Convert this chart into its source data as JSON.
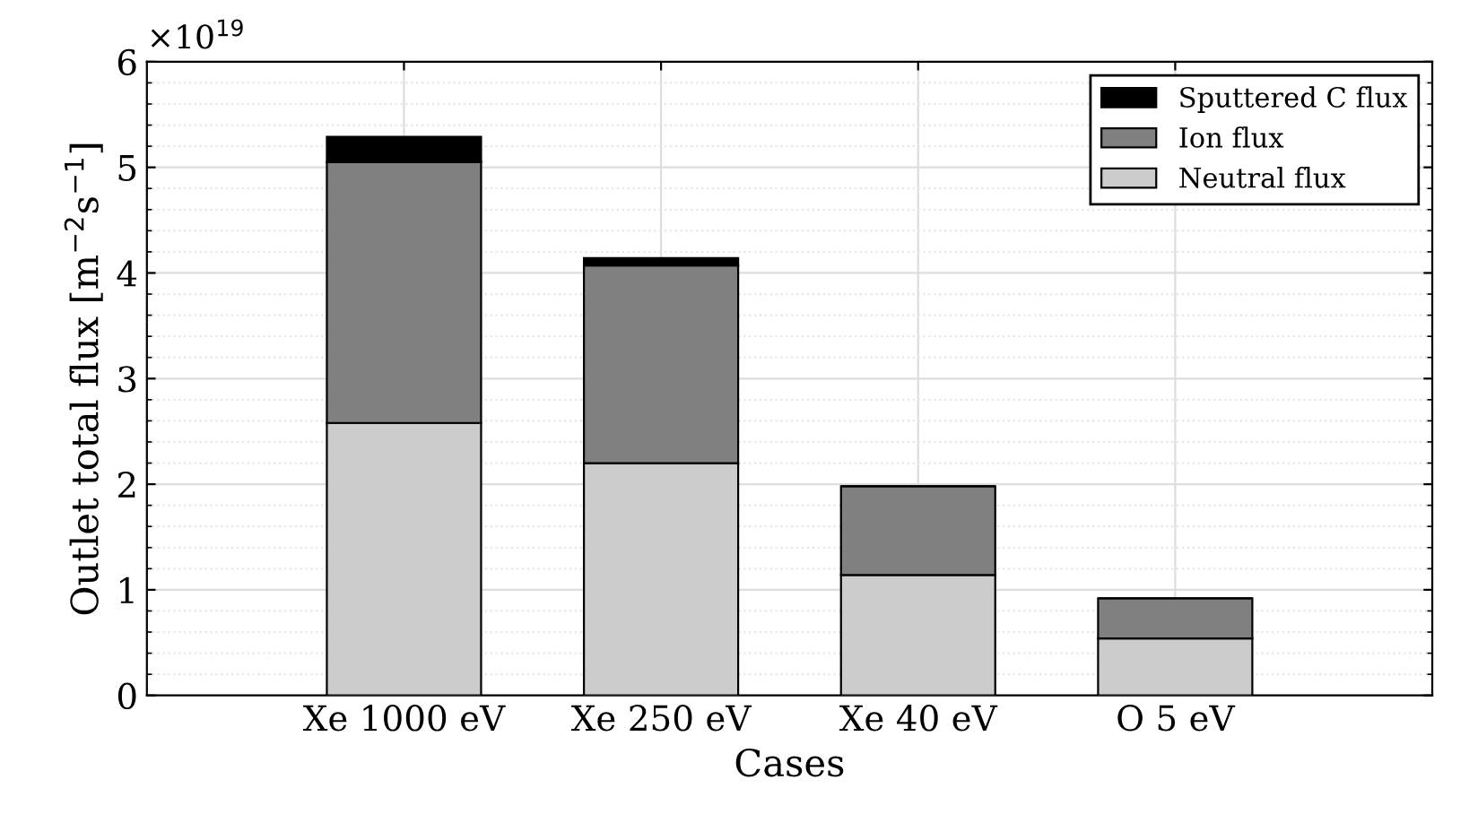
{
  "chart_data": {
    "type": "bar",
    "stacked": true,
    "xlabel": "Cases",
    "ylabel": "Outlet total flux [m$^{−2}$s$^{−1}$]",
    "categories": [
      "Xe 1000 eV",
      "Xe 250 eV",
      "Xe 40 eV",
      "O 5 eV"
    ],
    "series": [
      {
        "name": "Neutral flux",
        "color": "#cccccc",
        "values": [
          2.58,
          2.2,
          1.14,
          0.54
        ]
      },
      {
        "name": "Ion flux",
        "color": "#808080",
        "values": [
          2.47,
          1.87,
          0.84,
          0.38
        ]
      },
      {
        "name": "Sputtered C flux",
        "color": "#000000",
        "values": [
          0.24,
          0.07,
          0,
          0
        ]
      }
    ],
    "ylim": [
      0,
      6
    ],
    "yticks": [
      0,
      1,
      2,
      3,
      4,
      5,
      6
    ],
    "annotations": [
      "×10$^{19}$"
    ],
    "grid": true,
    "legend": "top right"
  }
}
